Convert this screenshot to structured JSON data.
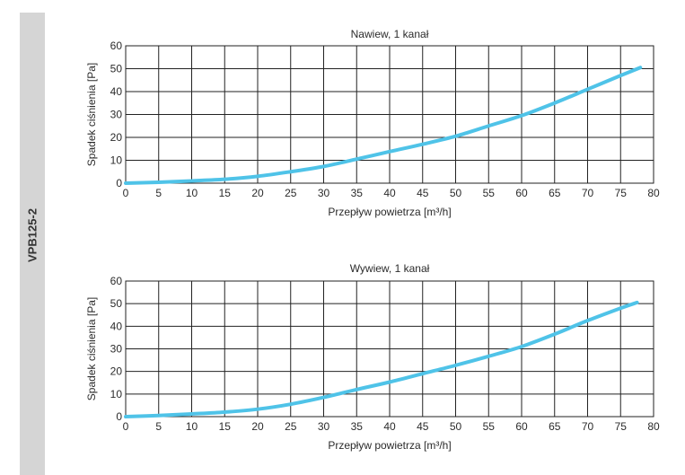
{
  "side_label": "VPB125-2",
  "chart_data": [
    {
      "type": "line",
      "title": "Nawiew, 1 kanał",
      "xlabel": "Przepływ powietrza [m³/h]",
      "ylabel": "Spadek ciśnienia [Pa]",
      "xlim": [
        0,
        80
      ],
      "ylim": [
        0,
        60
      ],
      "x_ticks": [
        0,
        5,
        10,
        15,
        20,
        25,
        30,
        35,
        40,
        45,
        50,
        55,
        60,
        65,
        70,
        75,
        80
      ],
      "y_ticks": [
        0,
        10,
        20,
        30,
        40,
        50,
        60
      ],
      "x_tick_labels": [
        "0",
        "5",
        "10",
        "15",
        "20",
        "25",
        "30",
        "35",
        "40",
        "45",
        "50",
        "55",
        "60",
        "65",
        "70",
        "75",
        "80"
      ],
      "y_tick_labels": [
        "0",
        "10",
        "20",
        "30",
        "40",
        "50",
        "60"
      ],
      "grid": true,
      "color": "#4fc3e8",
      "series": [
        {
          "x": [
            0,
            5,
            10,
            15,
            20,
            25,
            30,
            35,
            40,
            45,
            50,
            55,
            60,
            65,
            70,
            75,
            78
          ],
          "values": [
            0,
            0.4,
            1,
            1.7,
            3,
            5,
            7.3,
            10.5,
            13.8,
            17,
            20.5,
            25,
            29.5,
            35,
            41,
            47,
            50.5
          ]
        }
      ]
    },
    {
      "type": "line",
      "title": "Wywiew, 1 kanał",
      "xlabel": "Przepływ powietrza [m³/h]",
      "ylabel": "Spadek ciśnienia [Pa]",
      "xlim": [
        0,
        80
      ],
      "ylim": [
        0,
        60
      ],
      "x_ticks": [
        0,
        5,
        10,
        15,
        20,
        25,
        30,
        35,
        40,
        45,
        50,
        55,
        60,
        65,
        70,
        75,
        80
      ],
      "y_ticks": [
        0,
        10,
        20,
        30,
        40,
        50,
        60
      ],
      "x_tick_labels": [
        "0",
        "5",
        "10",
        "15",
        "20",
        "25",
        "30",
        "35",
        "40",
        "45",
        "50",
        "55",
        "60",
        "65",
        "70",
        "75",
        "80"
      ],
      "y_tick_labels": [
        "0",
        "10",
        "20",
        "30",
        "40",
        "50",
        "60"
      ],
      "grid": true,
      "color": "#4fc3e8",
      "series": [
        {
          "x": [
            0,
            5,
            10,
            15,
            20,
            25,
            30,
            35,
            40,
            45,
            50,
            55,
            60,
            65,
            70,
            75,
            77.5
          ],
          "values": [
            0,
            0.5,
            1.2,
            2,
            3.3,
            5.5,
            8.5,
            12,
            15.3,
            19,
            22.7,
            26.7,
            31,
            36.5,
            42.5,
            48,
            50.5
          ]
        }
      ]
    }
  ]
}
